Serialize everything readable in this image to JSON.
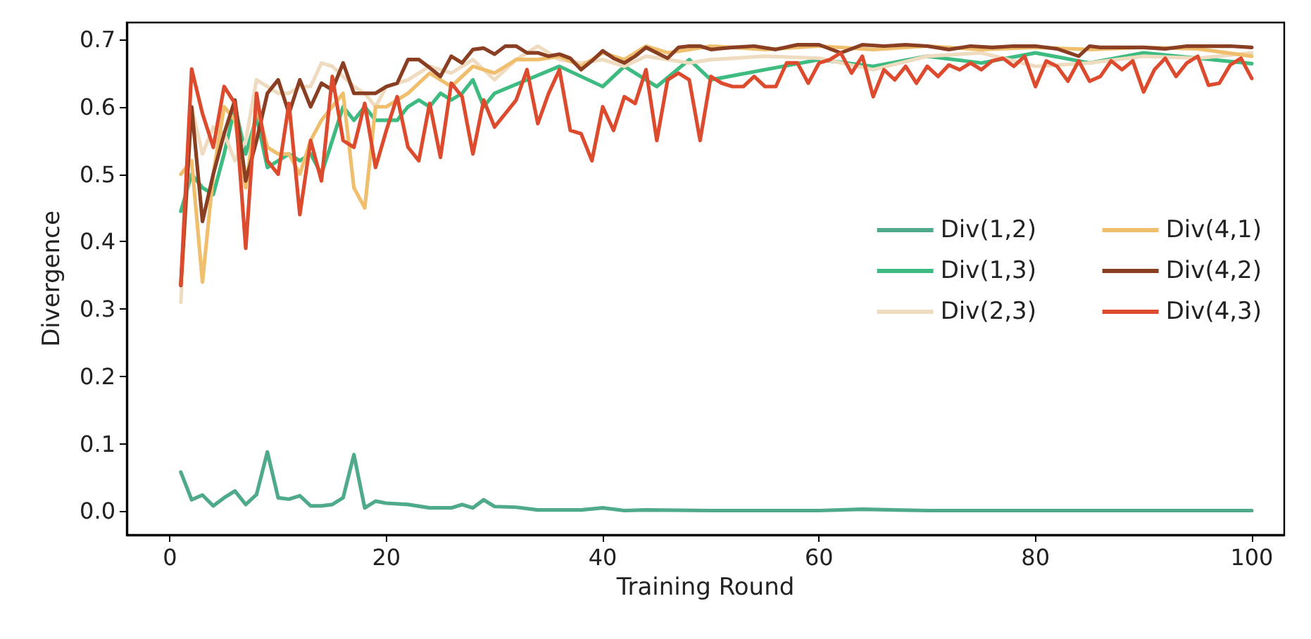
{
  "chart_data": {
    "type": "line",
    "xlabel": "Training Round",
    "ylabel": "Divergence",
    "xlim": [
      -4,
      103
    ],
    "ylim": [
      -0.035,
      0.725
    ],
    "xticks": [
      0,
      20,
      40,
      60,
      80,
      100
    ],
    "yticks": [
      {
        "value": 0,
        "label": "0.0"
      },
      {
        "value": 0.1,
        "label": "0.1"
      },
      {
        "value": 0.2,
        "label": "0.2"
      },
      {
        "value": 0.3,
        "label": "0.3"
      },
      {
        "value": 0.4,
        "label": "0.4"
      },
      {
        "value": 0.5,
        "label": "0.5"
      },
      {
        "value": 0.6,
        "label": "0.6"
      },
      {
        "value": 0.7,
        "label": "0.7"
      }
    ],
    "grid": false,
    "legend": "right",
    "marker": "none",
    "line_style": "solid",
    "series": [
      {
        "name": "Div(1,2)",
        "color": "#4eaa8a",
        "x": [
          1,
          2,
          3,
          4,
          5,
          6,
          7,
          8,
          9,
          10,
          11,
          12,
          13,
          14,
          15,
          16,
          17,
          18,
          19,
          20,
          22,
          24,
          26,
          27,
          28,
          29,
          30,
          32,
          34,
          36,
          38,
          40,
          42,
          44,
          50,
          60,
          64,
          70,
          80,
          90,
          100
        ],
        "values": [
          0.058,
          0.017,
          0.024,
          0.008,
          0.02,
          0.03,
          0.01,
          0.025,
          0.088,
          0.02,
          0.018,
          0.023,
          0.008,
          0.008,
          0.01,
          0.02,
          0.084,
          0.005,
          0.015,
          0.012,
          0.01,
          0.005,
          0.005,
          0.01,
          0.005,
          0.017,
          0.007,
          0.006,
          0.002,
          0.002,
          0.002,
          0.005,
          0.001,
          0.002,
          0.001,
          0.001,
          0.003,
          0.001,
          0.001,
          0.001,
          0.001
        ]
      },
      {
        "name": "Div(1,3)",
        "color": "#3dbb80",
        "x": [
          1,
          2,
          3,
          4,
          5,
          6,
          7,
          8,
          9,
          10,
          11,
          12,
          13,
          14,
          15,
          16,
          17,
          18,
          19,
          20,
          21,
          22,
          23,
          24,
          25,
          26,
          27,
          28,
          29,
          30,
          33,
          36,
          40,
          42,
          45,
          48,
          50,
          55,
          60,
          65,
          70,
          75,
          80,
          85,
          90,
          95,
          100
        ],
        "values": [
          0.445,
          0.5,
          0.48,
          0.47,
          0.53,
          0.6,
          0.53,
          0.585,
          0.51,
          0.52,
          0.53,
          0.52,
          0.53,
          0.5,
          0.55,
          0.6,
          0.58,
          0.6,
          0.58,
          0.58,
          0.58,
          0.6,
          0.61,
          0.6,
          0.62,
          0.61,
          0.62,
          0.64,
          0.6,
          0.62,
          0.64,
          0.66,
          0.63,
          0.66,
          0.63,
          0.67,
          0.64,
          0.655,
          0.67,
          0.66,
          0.675,
          0.665,
          0.68,
          0.665,
          0.68,
          0.672,
          0.664
        ]
      },
      {
        "name": "Div(2,3)",
        "color": "#efdcc0",
        "x": [
          1,
          2,
          3,
          4,
          5,
          6,
          7,
          8,
          9,
          10,
          11,
          12,
          13,
          14,
          15,
          16,
          17,
          18,
          19,
          20,
          22,
          24,
          26,
          28,
          30,
          32,
          34,
          36,
          38,
          40,
          42,
          44,
          46,
          48,
          50,
          55,
          60,
          65,
          70,
          75,
          80,
          85,
          90,
          95,
          100
        ],
        "values": [
          0.31,
          0.6,
          0.53,
          0.57,
          0.56,
          0.52,
          0.55,
          0.64,
          0.63,
          0.62,
          0.62,
          0.63,
          0.63,
          0.665,
          0.66,
          0.645,
          0.63,
          0.62,
          0.6,
          0.63,
          0.64,
          0.66,
          0.65,
          0.67,
          0.64,
          0.67,
          0.69,
          0.67,
          0.665,
          0.67,
          0.66,
          0.675,
          0.67,
          0.665,
          0.67,
          0.675,
          0.672,
          0.655,
          0.675,
          0.68,
          0.66,
          0.665,
          0.675,
          0.672,
          0.68
        ]
      },
      {
        "name": "Div(4,1)",
        "color": "#f0bf6e",
        "x": [
          1,
          2,
          3,
          4,
          5,
          6,
          7,
          8,
          9,
          10,
          11,
          12,
          13,
          14,
          15,
          16,
          17,
          18,
          19,
          20,
          22,
          24,
          26,
          28,
          30,
          32,
          34,
          36,
          38,
          40,
          42,
          44,
          46,
          48,
          50,
          55,
          60,
          65,
          70,
          75,
          80,
          85,
          90,
          95,
          100
        ],
        "values": [
          0.5,
          0.52,
          0.34,
          0.5,
          0.6,
          0.58,
          0.48,
          0.6,
          0.54,
          0.53,
          0.53,
          0.5,
          0.55,
          0.58,
          0.6,
          0.62,
          0.48,
          0.45,
          0.6,
          0.6,
          0.62,
          0.65,
          0.63,
          0.66,
          0.65,
          0.67,
          0.67,
          0.675,
          0.66,
          0.68,
          0.67,
          0.69,
          0.68,
          0.685,
          0.69,
          0.685,
          0.69,
          0.685,
          0.69,
          0.685,
          0.688,
          0.685,
          0.688,
          0.686,
          0.675
        ]
      },
      {
        "name": "Div(4,2)",
        "color": "#8a3e22",
        "x": [
          1,
          2,
          3,
          4,
          5,
          6,
          7,
          8,
          9,
          10,
          11,
          12,
          13,
          14,
          15,
          16,
          17,
          18,
          19,
          20,
          21,
          22,
          23,
          24,
          25,
          26,
          27,
          28,
          29,
          30,
          31,
          32,
          33,
          34,
          35,
          36,
          37,
          38,
          39,
          40,
          41,
          42,
          43,
          44,
          45,
          46,
          47,
          48,
          49,
          50,
          52,
          54,
          56,
          58,
          60,
          62,
          64,
          66,
          68,
          70,
          72,
          74,
          76,
          78,
          80,
          82,
          84,
          85,
          86,
          88,
          90,
          92,
          94,
          96,
          98,
          100
        ],
        "values": [
          0.335,
          0.6,
          0.43,
          0.5,
          0.56,
          0.61,
          0.49,
          0.55,
          0.62,
          0.64,
          0.59,
          0.64,
          0.6,
          0.635,
          0.625,
          0.665,
          0.62,
          0.62,
          0.62,
          0.63,
          0.635,
          0.67,
          0.67,
          0.658,
          0.645,
          0.675,
          0.665,
          0.685,
          0.687,
          0.678,
          0.69,
          0.69,
          0.68,
          0.68,
          0.675,
          0.678,
          0.672,
          0.655,
          0.668,
          0.683,
          0.672,
          0.665,
          0.675,
          0.688,
          0.68,
          0.672,
          0.688,
          0.69,
          0.69,
          0.685,
          0.688,
          0.69,
          0.685,
          0.692,
          0.692,
          0.68,
          0.692,
          0.69,
          0.692,
          0.69,
          0.685,
          0.69,
          0.688,
          0.69,
          0.69,
          0.686,
          0.675,
          0.69,
          0.688,
          0.688,
          0.688,
          0.686,
          0.69,
          0.69,
          0.69,
          0.688
        ]
      },
      {
        "name": "Div(4,3)",
        "color": "#dd4b2e",
        "x": [
          1,
          2,
          3,
          4,
          5,
          6,
          7,
          8,
          9,
          10,
          11,
          12,
          13,
          14,
          15,
          16,
          17,
          18,
          19,
          20,
          21,
          22,
          23,
          24,
          25,
          26,
          27,
          28,
          29,
          30,
          31,
          32,
          33,
          34,
          35,
          36,
          37,
          38,
          39,
          40,
          41,
          42,
          43,
          44,
          45,
          46,
          47,
          48,
          49,
          50,
          51,
          52,
          53,
          54,
          55,
          56,
          57,
          58,
          59,
          60,
          61,
          62,
          63,
          64,
          65,
          66,
          67,
          68,
          69,
          70,
          71,
          72,
          73,
          74,
          75,
          76,
          77,
          78,
          79,
          80,
          81,
          82,
          83,
          84,
          85,
          86,
          87,
          88,
          89,
          90,
          91,
          92,
          93,
          94,
          95,
          96,
          97,
          98,
          99,
          100
        ],
        "values": [
          0.336,
          0.656,
          0.59,
          0.54,
          0.63,
          0.605,
          0.39,
          0.62,
          0.52,
          0.5,
          0.605,
          0.44,
          0.55,
          0.49,
          0.645,
          0.55,
          0.54,
          0.605,
          0.51,
          0.565,
          0.615,
          0.54,
          0.52,
          0.605,
          0.525,
          0.635,
          0.615,
          0.53,
          0.61,
          0.57,
          0.59,
          0.61,
          0.655,
          0.575,
          0.62,
          0.655,
          0.565,
          0.56,
          0.52,
          0.6,
          0.565,
          0.615,
          0.605,
          0.655,
          0.55,
          0.64,
          0.65,
          0.64,
          0.55,
          0.645,
          0.635,
          0.63,
          0.63,
          0.645,
          0.63,
          0.63,
          0.665,
          0.665,
          0.635,
          0.665,
          0.67,
          0.68,
          0.65,
          0.675,
          0.615,
          0.655,
          0.64,
          0.66,
          0.635,
          0.66,
          0.645,
          0.662,
          0.655,
          0.665,
          0.655,
          0.668,
          0.672,
          0.66,
          0.675,
          0.63,
          0.668,
          0.66,
          0.638,
          0.668,
          0.638,
          0.645,
          0.668,
          0.655,
          0.668,
          0.622,
          0.655,
          0.672,
          0.645,
          0.665,
          0.675,
          0.632,
          0.635,
          0.662,
          0.672,
          0.642
        ]
      }
    ]
  }
}
